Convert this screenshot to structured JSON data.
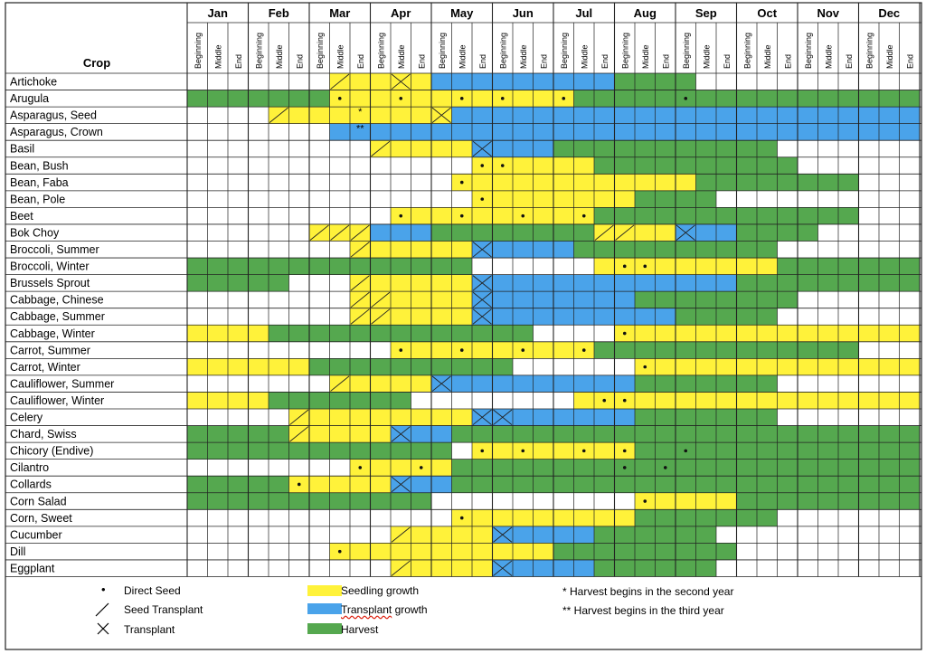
{
  "table": {
    "crop_header": "Crop",
    "months": [
      "Jan",
      "Feb",
      "Mar",
      "Apr",
      "May",
      "Jun",
      "Jul",
      "Aug",
      "Sep",
      "Oct",
      "Nov",
      "Dec"
    ],
    "subperiods": [
      "Beginning",
      "Middle",
      "End"
    ]
  },
  "colors": {
    "seedling": "#fff23a",
    "transplant": "#4aa3ea",
    "harvest": "#55a84f",
    "empty": "#ffffff",
    "line": "#222222"
  },
  "crops": [
    {
      "name": "Artichoke",
      "seg": [
        [
          "W",
          7
        ],
        [
          "Y",
          2
        ],
        [
          "Y",
          3
        ],
        [
          "B",
          9
        ],
        [
          "G",
          4
        ],
        [
          "W",
          11
        ]
      ],
      "marks": {
        "7": "/",
        "10": "x"
      }
    },
    {
      "name": "Arugula",
      "seg": [
        [
          "G",
          7
        ],
        [
          "Y",
          8
        ],
        [
          "Y",
          4
        ],
        [
          "G",
          17
        ]
      ],
      "marks": {
        "7": ".",
        "10": ".",
        "13": ".",
        "15": ".",
        "18": ".",
        "24": "."
      }
    },
    {
      "name": "Asparagus, Seed",
      "seg": [
        [
          "W",
          4
        ],
        [
          "Y",
          9
        ],
        [
          "B",
          23
        ]
      ],
      "marks": {
        "4": "/",
        "8": "*",
        "12": "x"
      }
    },
    {
      "name": "Asparagus, Crown",
      "seg": [
        [
          "W",
          7
        ],
        [
          "B",
          29
        ]
      ],
      "marks": {
        "8": "**"
      }
    },
    {
      "name": "Basil",
      "seg": [
        [
          "W",
          9
        ],
        [
          "Y",
          5
        ],
        [
          "B",
          4
        ],
        [
          "G",
          11
        ],
        [
          "W",
          7
        ]
      ],
      "marks": {
        "9": "/",
        "14": "x"
      }
    },
    {
      "name": "Bean, Bush",
      "seg": [
        [
          "W",
          14
        ],
        [
          "Y",
          6
        ],
        [
          "G",
          10
        ],
        [
          "W",
          6
        ]
      ],
      "marks": {
        "14": ".",
        "15": "."
      }
    },
    {
      "name": "Bean, Faba",
      "seg": [
        [
          "W",
          13
        ],
        [
          "Y",
          12
        ],
        [
          "G",
          8
        ],
        [
          "W",
          3
        ]
      ],
      "marks": {
        "13": "."
      }
    },
    {
      "name": "Bean, Pole",
      "seg": [
        [
          "W",
          14
        ],
        [
          "Y",
          8
        ],
        [
          "G",
          4
        ],
        [
          "W",
          10
        ]
      ],
      "marks": {
        "14": "."
      }
    },
    {
      "name": "Beet",
      "seg": [
        [
          "W",
          10
        ],
        [
          "Y",
          10
        ],
        [
          "G",
          13
        ],
        [
          "W",
          3
        ]
      ],
      "marks": {
        "10": ".",
        "13": ".",
        "16": ".",
        "19": "."
      }
    },
    {
      "name": "Bok Choy",
      "seg": [
        [
          "W",
          6
        ],
        [
          "Y",
          3
        ],
        [
          "B",
          3
        ],
        [
          "G",
          8
        ],
        [
          "Y",
          4
        ],
        [
          "B",
          3
        ],
        [
          "G",
          4
        ],
        [
          "W",
          5
        ]
      ],
      "marks": {
        "6": "/",
        "7": "/",
        "8": "/",
        "20": "/",
        "21": "/",
        "24": "x"
      }
    },
    {
      "name": "Broccoli, Summer",
      "seg": [
        [
          "W",
          8
        ],
        [
          "Y",
          6
        ],
        [
          "B",
          5
        ],
        [
          "G",
          10
        ],
        [
          "W",
          7
        ]
      ],
      "marks": {
        "8": "/",
        "14": "x"
      }
    },
    {
      "name": "Broccoli, Winter",
      "seg": [
        [
          "G",
          14
        ],
        [
          "W",
          6
        ],
        [
          "Y",
          9
        ],
        [
          "G",
          7
        ]
      ],
      "marks": {
        "21": ".",
        "22": "."
      }
    },
    {
      "name": "Brussels Sprout",
      "seg": [
        [
          "G",
          5
        ],
        [
          "W",
          3
        ],
        [
          "Y",
          6
        ],
        [
          "B",
          13
        ],
        [
          "G",
          9
        ]
      ],
      "marks": {
        "8": "/",
        "14": "x"
      }
    },
    {
      "name": "Cabbage, Chinese",
      "seg": [
        [
          "W",
          8
        ],
        [
          "Y",
          6
        ],
        [
          "B",
          8
        ],
        [
          "G",
          8
        ],
        [
          "W",
          6
        ]
      ],
      "marks": {
        "8": "/",
        "9": "/",
        "14": "x"
      }
    },
    {
      "name": "Cabbage, Summer",
      "seg": [
        [
          "W",
          8
        ],
        [
          "Y",
          6
        ],
        [
          "B",
          10
        ],
        [
          "G",
          5
        ],
        [
          "W",
          7
        ]
      ],
      "marks": {
        "8": "/",
        "9": "/",
        "14": "x"
      }
    },
    {
      "name": "Cabbage, Winter",
      "seg": [
        [
          "Y",
          4
        ],
        [
          "G",
          13
        ],
        [
          "W",
          4
        ],
        [
          "Y",
          15
        ]
      ],
      "marks": {
        "21": "."
      }
    },
    {
      "name": "Carrot, Summer",
      "seg": [
        [
          "W",
          10
        ],
        [
          "Y",
          10
        ],
        [
          "G",
          13
        ],
        [
          "W",
          3
        ]
      ],
      "marks": {
        "10": ".",
        "13": ".",
        "16": ".",
        "19": "."
      }
    },
    {
      "name": "Carrot, Winter",
      "seg": [
        [
          "Y",
          6
        ],
        [
          "G",
          10
        ],
        [
          "W",
          6
        ],
        [
          "Y",
          14
        ]
      ],
      "marks": {
        "22": "."
      }
    },
    {
      "name": "Cauliflower, Summer",
      "seg": [
        [
          "W",
          7
        ],
        [
          "Y",
          5
        ],
        [
          "B",
          10
        ],
        [
          "G",
          7
        ],
        [
          "W",
          7
        ]
      ],
      "marks": {
        "7": "/",
        "12": "x"
      }
    },
    {
      "name": "Cauliflower, Winter",
      "seg": [
        [
          "Y",
          4
        ],
        [
          "G",
          7
        ],
        [
          "W",
          8
        ],
        [
          "Y",
          17
        ]
      ],
      "marks": {
        "20": ".",
        "21": "."
      }
    },
    {
      "name": "Celery",
      "seg": [
        [
          "W",
          5
        ],
        [
          "Y",
          9
        ],
        [
          "B",
          8
        ],
        [
          "G",
          7
        ],
        [
          "W",
          7
        ]
      ],
      "marks": {
        "5": "/",
        "14": "x",
        "15": "x"
      }
    },
    {
      "name": "Chard, Swiss",
      "seg": [
        [
          "G",
          5
        ],
        [
          "Y",
          5
        ],
        [
          "B",
          3
        ],
        [
          "G",
          23
        ]
      ],
      "marks": {
        "5": "/",
        "10": "x"
      }
    },
    {
      "name": "Chicory (Endive)",
      "seg": [
        [
          "G",
          13
        ],
        [
          "W",
          1
        ],
        [
          "Y",
          8
        ],
        [
          "G",
          14
        ]
      ],
      "marks": {
        "14": ".",
        "16": ".",
        "19": ".",
        "21": ".",
        "24": "."
      }
    },
    {
      "name": "Cilantro",
      "seg": [
        [
          "W",
          8
        ],
        [
          "Y",
          5
        ],
        [
          "G",
          23
        ]
      ],
      "marks": {
        "8": ".",
        "11": ".",
        "21": ".",
        "23": "."
      }
    },
    {
      "name": "Collards",
      "seg": [
        [
          "G",
          5
        ],
        [
          "Y",
          5
        ],
        [
          "B",
          3
        ],
        [
          "G",
          23
        ]
      ],
      "marks": {
        "5": ".",
        "10": "x"
      }
    },
    {
      "name": "Corn Salad",
      "seg": [
        [
          "G",
          12
        ],
        [
          "W",
          10
        ],
        [
          "Y",
          5
        ],
        [
          "G",
          9
        ]
      ],
      "marks": {
        "22": "."
      }
    },
    {
      "name": "Corn, Sweet",
      "seg": [
        [
          "W",
          13
        ],
        [
          "Y",
          9
        ],
        [
          "G",
          7
        ],
        [
          "W",
          7
        ]
      ],
      "marks": {
        "13": "."
      }
    },
    {
      "name": "Cucumber",
      "seg": [
        [
          "W",
          10
        ],
        [
          "Y",
          5
        ],
        [
          "B",
          5
        ],
        [
          "G",
          6
        ],
        [
          "W",
          10
        ]
      ],
      "marks": {
        "10": "/",
        "15": "x"
      }
    },
    {
      "name": "Dill",
      "seg": [
        [
          "W",
          7
        ],
        [
          "Y",
          11
        ],
        [
          "G",
          9
        ],
        [
          "W",
          9
        ]
      ],
      "marks": {
        "7": "."
      }
    },
    {
      "name": "Eggplant",
      "seg": [
        [
          "W",
          10
        ],
        [
          "Y",
          5
        ],
        [
          "B",
          5
        ],
        [
          "G",
          6
        ],
        [
          "W",
          10
        ]
      ],
      "marks": {
        "10": "/",
        "15": "x"
      }
    }
  ],
  "legend": {
    "direct_seed": "Direct Seed",
    "seed_transplant": "Seed Transplant",
    "transplant": "Transplant",
    "seedling_growth": "Seedling growth",
    "transplant_growth_word": "Transplant",
    "transplant_growth_rest": " growth",
    "harvest": "Harvest",
    "note_second_year": "* Harvest begins in the second year",
    "note_third_year": "** Harvest begins in the third year",
    "dot_symbol": "•",
    "slash_symbol": "/",
    "x_symbol": "✕"
  }
}
